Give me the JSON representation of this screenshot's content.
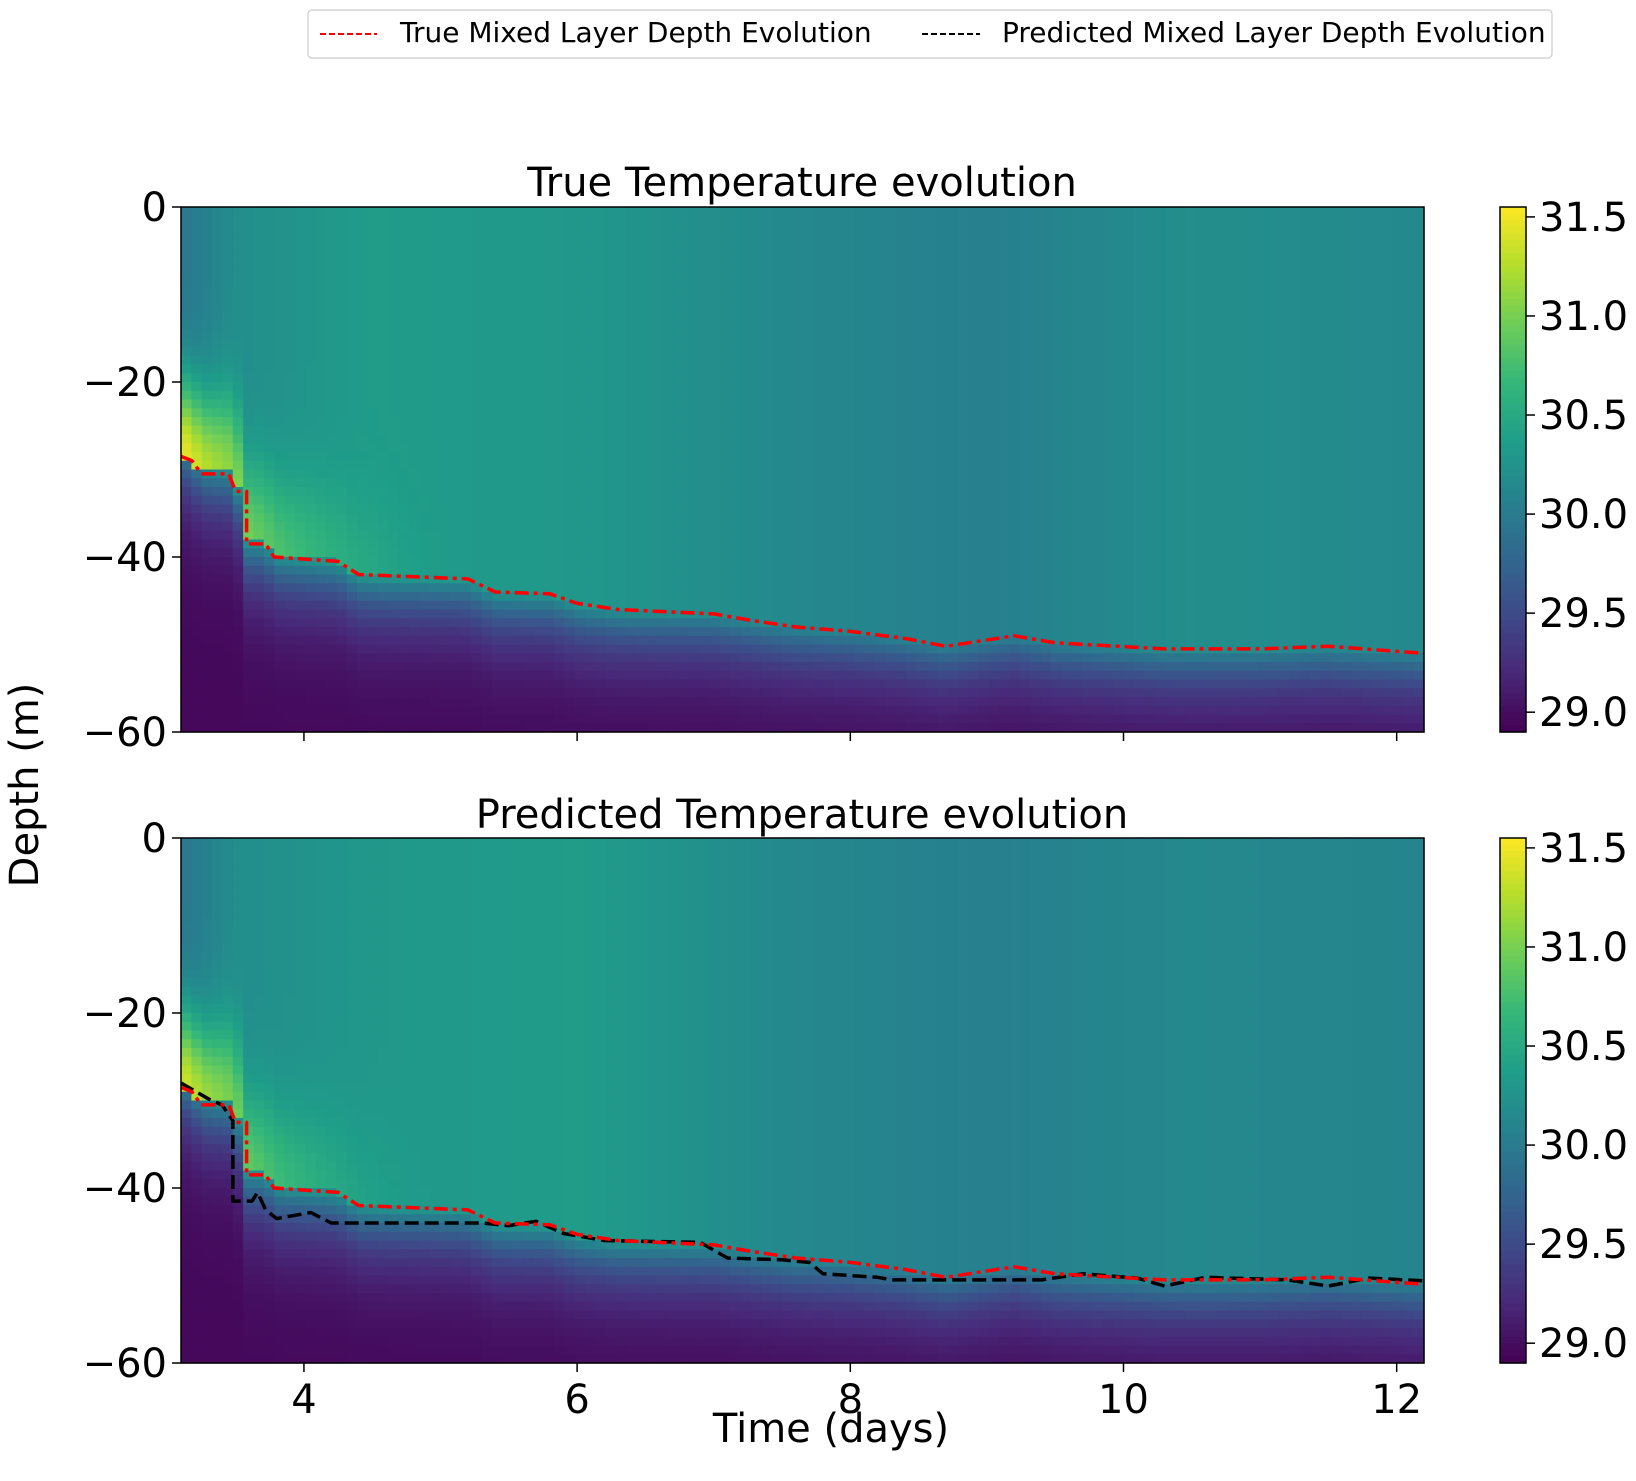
{
  "chart_data": {
    "type": "heatmap",
    "legend": {
      "placement": "top-right",
      "entries": [
        {
          "label": "True Mixed Layer Depth Evolution",
          "color": "#ff0000",
          "style": "dashed"
        },
        {
          "label": "Predicted Mixed Layer Depth Evolution",
          "color": "#000000",
          "style": "dashed"
        }
      ]
    },
    "shared_xlabel": "Time (days)",
    "shared_ylabel": "Depth (m)",
    "colormap": "viridis",
    "colorbar": {
      "min": 28.9,
      "max": 31.55,
      "ticks": [
        "29.0",
        "29.5",
        "30.0",
        "30.5",
        "31.0",
        "31.5"
      ],
      "tick_values": [
        29.0,
        29.5,
        30.0,
        30.5,
        31.0,
        31.5
      ]
    },
    "xlim": [
      3.1,
      12.2
    ],
    "ylim": [
      -60,
      0
    ],
    "xticks": [
      4,
      6,
      8,
      10,
      12
    ],
    "xtick_labels": [
      "4",
      "6",
      "8",
      "10",
      "12"
    ],
    "yticks": [
      0,
      -20,
      -40,
      -60
    ],
    "ytick_labels": [
      "0",
      "−20",
      "−40",
      "−60"
    ],
    "panels": [
      {
        "title": "True Temperature evolution",
        "heatmap_field": {
          "surface_temp_by_time": {
            "x": [
              3.1,
              3.5,
              4.5,
              6.0,
              7.5,
              9.0,
              10.5,
              12.2
            ],
            "values": [
              29.95,
              30.2,
              30.35,
              30.3,
              30.15,
              30.05,
              30.2,
              30.15
            ]
          },
          "warm_anomaly": {
            "peak_value": 31.5,
            "peak_time": 3.1,
            "peak_depth": -33,
            "decay_time": 5.2
          },
          "cold_layer_value": 28.95
        },
        "lines": [
          {
            "name": "True Mixed Layer Depth Evolution",
            "x": [
              3.1,
              3.18,
              3.25,
              3.45,
              3.5,
              3.58,
              3.58,
              3.72,
              3.78,
              4.25,
              4.4,
              5.2,
              5.4,
              5.8,
              6.0,
              6.3,
              7.0,
              7.3,
              7.6,
              8.0,
              8.4,
              8.7,
              9.2,
              9.5,
              10.3,
              11.0,
              11.5,
              12.2
            ],
            "y": [
              -28.5,
              -29,
              -30.5,
              -30.5,
              -32.5,
              -32.5,
              -38.5,
              -38.5,
              -40,
              -40.5,
              -42,
              -42.5,
              -44,
              -44.2,
              -45.3,
              -46,
              -46.5,
              -47.3,
              -48,
              -48.5,
              -49.3,
              -50.2,
              -49,
              -49.8,
              -50.5,
              -50.5,
              -50.2,
              -51
            ]
          }
        ]
      },
      {
        "title": "Predicted Temperature evolution",
        "heatmap_field": {
          "surface_temp_by_time": {
            "x": [
              3.1,
              3.5,
              4.5,
              6.0,
              7.5,
              9.0,
              10.5,
              12.2
            ],
            "values": [
              29.95,
              30.2,
              30.3,
              30.35,
              30.15,
              30.05,
              30.15,
              30.1
            ]
          },
          "warm_anomaly": {
            "peak_value": 31.4,
            "peak_time": 3.1,
            "peak_depth": -33,
            "decay_time": 5.1
          },
          "cold_layer_value": 28.95
        },
        "lines": [
          {
            "name": "True Mixed Layer Depth Evolution",
            "x": [
              3.1,
              3.18,
              3.25,
              3.45,
              3.5,
              3.58,
              3.58,
              3.72,
              3.78,
              4.25,
              4.4,
              5.2,
              5.4,
              5.8,
              6.0,
              6.3,
              7.0,
              7.3,
              7.6,
              8.0,
              8.4,
              8.7,
              9.2,
              9.5,
              10.3,
              11.0,
              11.5,
              12.2
            ],
            "y": [
              -28.5,
              -29,
              -30.5,
              -30.5,
              -32.5,
              -32.5,
              -38.5,
              -38.5,
              -40,
              -40.5,
              -42,
              -42.5,
              -44,
              -44.2,
              -45.3,
              -46,
              -46.5,
              -47.3,
              -48,
              -48.5,
              -49.3,
              -50.2,
              -49,
              -49.8,
              -50.5,
              -50.5,
              -50.2,
              -51
            ]
          },
          {
            "name": "Predicted Mixed Layer Depth Evolution",
            "x": [
              3.1,
              3.3,
              3.4,
              3.48,
              3.48,
              3.62,
              3.66,
              3.72,
              3.8,
              4.05,
              4.2,
              5.3,
              5.5,
              5.7,
              5.9,
              6.2,
              6.9,
              7.1,
              7.5,
              7.7,
              7.8,
              8.2,
              8.3,
              9.0,
              9.4,
              9.7,
              10.1,
              10.3,
              10.6,
              11.2,
              11.5,
              11.8,
              12.2
            ],
            "y": [
              -28,
              -29.8,
              -30.5,
              -32.3,
              -41.5,
              -41.5,
              -40.5,
              -42.5,
              -43.5,
              -42.8,
              -44,
              -44,
              -44.3,
              -43.8,
              -45.2,
              -46,
              -46.2,
              -48,
              -48.2,
              -48.5,
              -49.8,
              -50.2,
              -50.5,
              -50.5,
              -50.5,
              -49.8,
              -50.3,
              -51.2,
              -50.2,
              -50.5,
              -51.2,
              -50.3,
              -50.6
            ]
          }
        ]
      }
    ]
  }
}
